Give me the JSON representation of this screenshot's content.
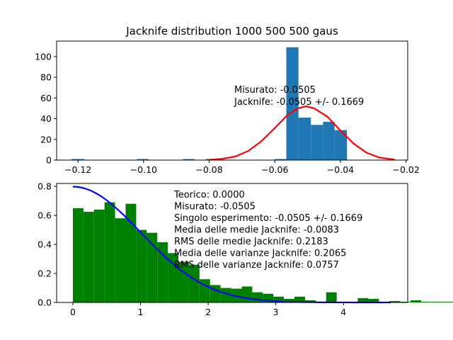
{
  "chart_data": [
    {
      "type": "bar",
      "title": "Jacknife distribution 1000 500 500 gaus",
      "xlim": [
        -0.1265,
        -0.0195
      ],
      "ylim": [
        0,
        115
      ],
      "xticks": [
        -0.12,
        -0.1,
        -0.08,
        -0.06,
        -0.04,
        -0.02
      ],
      "xtick_labels": [
        "−0.12",
        "−0.10",
        "−0.08",
        "−0.06",
        "−0.04",
        "−0.02"
      ],
      "yticks": [
        0,
        20,
        40,
        60,
        80,
        100
      ],
      "ytick_labels": [
        "0",
        "20",
        "40",
        "60",
        "80",
        "100"
      ],
      "bar_color": "#1f77b4",
      "bins": [
        {
          "x0": -0.122,
          "x1": -0.118,
          "value": 1
        },
        {
          "x0": -0.102,
          "x1": -0.0985,
          "value": 1
        },
        {
          "x0": -0.088,
          "x1": -0.0845,
          "value": 1
        },
        {
          "x0": -0.081,
          "x1": -0.077,
          "value": 1
        },
        {
          "x0": -0.06,
          "x1": -0.0565,
          "value": 1
        },
        {
          "x0": -0.0565,
          "x1": -0.0528,
          "value": 109
        },
        {
          "x0": -0.0528,
          "x1": -0.049,
          "value": 41
        },
        {
          "x0": -0.049,
          "x1": -0.0453,
          "value": 34
        },
        {
          "x0": -0.0453,
          "x1": -0.0418,
          "value": 37
        },
        {
          "x0": -0.0418,
          "x1": -0.038,
          "value": 29
        }
      ],
      "curve": {
        "color": "#ff0000",
        "x": [
          -0.08,
          -0.076,
          -0.072,
          -0.068,
          -0.064,
          -0.06,
          -0.056,
          -0.053,
          -0.0505,
          -0.048,
          -0.044,
          -0.04,
          -0.036,
          -0.032,
          -0.028,
          -0.0235
        ],
        "y": [
          0.3,
          1.2,
          3.5,
          9,
          18.5,
          31,
          44,
          50,
          52,
          50,
          42,
          28.5,
          16,
          7,
          2.3,
          0.5
        ]
      },
      "annotations": [
        "Misurato: -0.0505",
        "Jacknife: -0.0505 +/-  0.1669"
      ]
    },
    {
      "type": "bar",
      "title": "",
      "xlim": [
        -0.24,
        4.95
      ],
      "ylim": [
        0,
        0.82
      ],
      "xticks": [
        0,
        1,
        2,
        3,
        4
      ],
      "xtick_labels": [
        "0",
        "1",
        "2",
        "3",
        "4"
      ],
      "yticks": [
        0,
        0.2,
        0.4,
        0.6,
        0.8
      ],
      "ytick_labels": [
        "0.0",
        "0.2",
        "0.4",
        "0.6",
        "0.8"
      ],
      "bar_color": "#008000",
      "bin_width": 0.156,
      "bin_start": 0.0,
      "values": [
        0.65,
        0.625,
        0.64,
        0.69,
        0.58,
        0.68,
        0.5,
        0.48,
        0.415,
        0.34,
        0.28,
        0.26,
        0.16,
        0.12,
        0.1,
        0.095,
        0.11,
        0.07,
        0.06,
        0.04,
        0.025,
        0.04,
        0.015,
        0.005,
        0.07,
        0.005,
        0.005,
        0.03,
        0.025,
        0.005,
        0.01,
        0.005,
        0.015,
        0.005,
        0.005,
        0.005,
        0.005,
        0.01,
        0.005,
        0.005,
        0.005,
        0.005,
        0.005,
        0.0,
        0.005,
        0.005,
        0.0,
        0.0,
        0.0,
        0.0
      ],
      "curve": {
        "color": "#0000ff",
        "type": "half-gaussian",
        "amplitude": 0.798,
        "sigma": 1.0,
        "x_range": [
          0,
          4.7
        ]
      },
      "annotations": [
        "Teorico:  0.0000",
        "Misurato: -0.0505",
        "Singolo esperimento: -0.0505 +/-  0.1669",
        "Media delle medie Jacknife: -0.0083",
        "RMS delle medie Jacknife:  0.2183",
        "Media delle varianze Jacknife:  0.2065",
        "RMS delle varianze Jacknife:  0.0757"
      ]
    }
  ]
}
